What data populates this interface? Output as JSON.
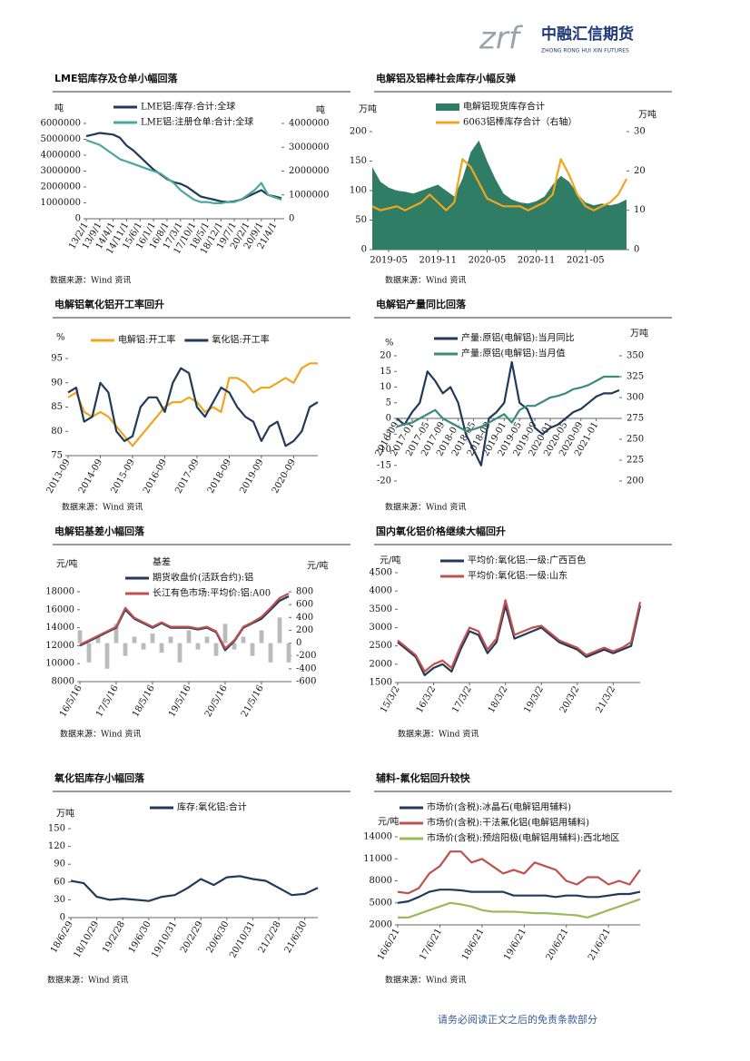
{
  "header": {
    "logo_mark": "zrf",
    "company": "中融汇信期货",
    "company_en": "ZHONG RONG HUI XIN FUTURES"
  },
  "footer": "请务必阅读正文之后的免责条款部分",
  "chart_data": [
    {
      "type": "line",
      "title": "LME铝库存及仓单小幅回落",
      "ylabel": "吨",
      "y2label": "吨",
      "source": "数据来源：Wind 资讯",
      "categories": [
        "13/2/1",
        null,
        "13/9/1",
        null,
        "14/4/1",
        null,
        "14/11/1",
        null,
        "15/6/1",
        null,
        "16/1/1",
        null,
        "16/8/1",
        null,
        "17/3/1",
        null,
        "17/10/1",
        null,
        "18/5/1",
        null,
        "18/12/1",
        null,
        "19/7/1",
        null,
        "20/2/1",
        null,
        "20/9/1",
        null,
        "21/4/1",
        null
      ],
      "ylim": [
        0,
        6000000
      ],
      "yticks": [
        0,
        1000000,
        2000000,
        3000000,
        4000000,
        5000000,
        6000000
      ],
      "y2lim": [
        0,
        4000000
      ],
      "y2ticks": [
        0,
        1000000,
        2000000,
        3000000,
        4000000
      ],
      "series": [
        {
          "name": "LME铝:库存:合计:全球",
          "color": "#1f3a5a",
          "values": [
            5200000,
            5300000,
            5400000,
            5350000,
            5300000,
            5100000,
            4600000,
            4300000,
            3900000,
            3500000,
            3100000,
            2800000,
            2500000,
            2300000,
            2200000,
            2000000,
            1700000,
            1400000,
            1300000,
            1200000,
            1100000,
            1050000,
            1100000,
            1200000,
            1400000,
            1600000,
            1800000,
            1500000,
            1400000,
            1300000
          ]
        },
        {
          "name": "LME铝:注册仓单:合计:全球",
          "color": "#4aa89a",
          "axis": "y2",
          "values": [
            3300000,
            3200000,
            3100000,
            2900000,
            2700000,
            2500000,
            2400000,
            2300000,
            2200000,
            2100000,
            2000000,
            1900000,
            1700000,
            1500000,
            1200000,
            1000000,
            800000,
            700000,
            700000,
            650000,
            650000,
            700000,
            700000,
            800000,
            1000000,
            1200000,
            1500000,
            1000000,
            900000,
            800000
          ]
        }
      ]
    },
    {
      "type": "line",
      "title": "电解铝及铝棒社会库存小幅反弹",
      "ylabel": "万吨",
      "y2label": "万吨",
      "source": "数据来源：Wind 资讯",
      "categories": [
        null,
        null,
        "2019-05",
        null,
        null,
        null,
        null,
        null,
        "2019-11",
        null,
        null,
        null,
        null,
        null,
        "2020-05",
        null,
        null,
        null,
        null,
        null,
        "2020-11",
        null,
        null,
        null,
        null,
        null,
        "2021-05",
        null,
        null,
        null,
        null,
        null
      ],
      "ylim": [
        0,
        200
      ],
      "yticks": [
        0,
        50,
        100,
        150,
        200
      ],
      "y2lim": [
        0,
        30
      ],
      "y2ticks": [
        0,
        10,
        20,
        30
      ],
      "series": [
        {
          "name": "电解铝现货库存合计",
          "color": "#2e7d64",
          "kind": "area",
          "values": [
            140,
            115,
            105,
            100,
            98,
            95,
            100,
            105,
            110,
            100,
            90,
            120,
            165,
            185,
            150,
            120,
            95,
            85,
            80,
            78,
            82,
            90,
            110,
            125,
            115,
            95,
            80,
            75,
            78,
            75,
            78,
            85
          ]
        },
        {
          "name": "6063铝棒库存合计（右轴）",
          "color": "#f0a51c",
          "axis": "y2",
          "values": [
            11,
            10,
            10.5,
            11,
            10,
            11,
            12,
            14,
            12,
            10,
            12,
            23,
            21,
            17,
            13,
            12,
            11,
            11,
            11,
            10,
            11,
            12,
            14,
            23,
            19,
            14,
            11,
            10,
            11,
            12,
            14,
            18
          ]
        }
      ]
    },
    {
      "type": "line",
      "title": "电解铝氧化铝开工率回升",
      "ylabel": "%",
      "source": "数据来源：Wind 资讯",
      "categories": [
        "2013-09",
        null,
        null,
        null,
        "2014-09",
        null,
        null,
        null,
        "2015-09",
        null,
        null,
        null,
        "2016-09",
        null,
        null,
        null,
        "2017-09",
        null,
        null,
        null,
        "2018-09",
        null,
        null,
        null,
        "2019-09",
        null,
        null,
        null,
        "2020-09",
        null,
        null,
        null
      ],
      "ylim": [
        75,
        95
      ],
      "yticks": [
        75,
        80,
        85,
        90,
        95
      ],
      "series": [
        {
          "name": "电解铝:开工率",
          "color": "#f0a51c",
          "values": [
            87,
            88,
            84,
            83,
            84,
            83,
            81,
            79,
            77,
            79,
            81,
            83,
            85,
            86,
            86,
            87,
            86,
            84,
            85,
            84,
            91,
            91,
            90,
            88,
            89,
            89,
            90,
            91,
            90,
            93,
            94,
            94
          ]
        },
        {
          "name": "氧化铝:开工率",
          "color": "#1f3a5a",
          "values": [
            88,
            89,
            82,
            83,
            90,
            88,
            80,
            78,
            79,
            85,
            87,
            87,
            84,
            90,
            93,
            92,
            85,
            83,
            86,
            89,
            88,
            85,
            83,
            82,
            78,
            81,
            82,
            77,
            78,
            80,
            85,
            86
          ]
        }
      ]
    },
    {
      "type": "line",
      "title": "电解铝产量同比回落",
      "ylabel": "%",
      "y2label": "万吨",
      "source": "数据来源：Wind 资讯",
      "categories": [
        "2016-09",
        null,
        "2017-01",
        null,
        "2017-05",
        null,
        "2017-09",
        null,
        "2018-01",
        null,
        "2018-05",
        null,
        "2018-09",
        null,
        "2019-01",
        null,
        "2019-05",
        null,
        "2019-09",
        null,
        "2020-01",
        null,
        "2020-05",
        null,
        "2020-09",
        null,
        "2021-01",
        null,
        null,
        null
      ],
      "ylim": [
        -20,
        20
      ],
      "yticks": [
        -20,
        -15,
        -10,
        -5,
        0,
        5,
        10,
        15,
        20
      ],
      "y2lim": [
        200,
        350
      ],
      "y2ticks": [
        200,
        225,
        250,
        275,
        300,
        325,
        350
      ],
      "series": [
        {
          "name": "产量:原铝(电解铝):当月同比",
          "color": "#1f3a5a",
          "values": [
            0,
            -2,
            2,
            5,
            15,
            12,
            8,
            10,
            5,
            -5,
            -10,
            -15,
            0,
            2,
            5,
            18,
            5,
            3,
            -3,
            -5,
            -3,
            -2,
            0,
            2,
            3,
            5,
            7,
            8,
            8,
            9
          ]
        },
        {
          "name": "产量:原铝(电解铝):当月值",
          "color": "#3a8c78",
          "axis": "y2",
          "values": [
            265,
            268,
            270,
            275,
            280,
            285,
            275,
            270,
            265,
            260,
            262,
            265,
            270,
            275,
            280,
            270,
            285,
            290,
            290,
            295,
            300,
            302,
            305,
            310,
            312,
            315,
            320,
            325,
            325,
            325
          ]
        }
      ]
    },
    {
      "type": "line",
      "title": "电解铝基差小幅回落",
      "ylabel": "元/吨",
      "y2label": "元/吨",
      "source": "数据来源：Wind 资讯",
      "categories": [
        "16/5/16",
        null,
        null,
        null,
        "17/5/16",
        null,
        null,
        null,
        "18/5/16",
        null,
        null,
        null,
        "19/5/16",
        null,
        null,
        null,
        "20/5/16",
        null,
        null,
        null,
        "21/5/16",
        null,
        null,
        null
      ],
      "ylim": [
        8000,
        18000
      ],
      "yticks": [
        8000,
        10000,
        12000,
        14000,
        16000,
        18000
      ],
      "y2lim": [
        -600,
        800
      ],
      "y2ticks": [
        -600,
        -400,
        -200,
        0,
        200,
        400,
        600,
        800
      ],
      "series": [
        {
          "name": "基差",
          "color": "#bbbbbb",
          "kind": "bar",
          "axis": "y2",
          "values": [
            200,
            -300,
            100,
            -400,
            300,
            -200,
            100,
            -100,
            150,
            -150,
            100,
            -300,
            200,
            -100,
            100,
            -200,
            300,
            -100,
            100,
            -200,
            200,
            -300,
            400,
            -300
          ]
        },
        {
          "name": "期货收盘价(活跃合约):铝",
          "color": "#1f3a5a",
          "values": [
            12000,
            12500,
            13000,
            13500,
            14000,
            16000,
            15000,
            14500,
            14000,
            14500,
            14000,
            14000,
            14000,
            13800,
            14000,
            13500,
            11500,
            12500,
            14000,
            14500,
            15000,
            16000,
            17000,
            17500
          ]
        },
        {
          "name": "长江有色市场:平均价:铝:A00",
          "color": "#c0504d",
          "values": [
            12100,
            12600,
            13100,
            13600,
            14100,
            16200,
            15100,
            14600,
            14100,
            14600,
            14100,
            14100,
            14100,
            13900,
            14100,
            13600,
            11700,
            12600,
            14100,
            14600,
            15200,
            16200,
            17300,
            17800
          ]
        }
      ]
    },
    {
      "type": "line",
      "title": "国内氧化铝价格继续大幅回升",
      "ylabel": "元/吨",
      "source": "数据来源：Wind 资讯",
      "categories": [
        "15/3/2",
        null,
        null,
        null,
        "16/3/2",
        null,
        null,
        null,
        "17/3/2",
        null,
        null,
        null,
        "18/3/2",
        null,
        null,
        null,
        "19/3/2",
        null,
        null,
        null,
        "20/3/2",
        null,
        null,
        null,
        "21/3/2",
        null,
        null,
        null
      ],
      "ylim": [
        1500,
        4500
      ],
      "yticks": [
        1500,
        2000,
        2500,
        3000,
        3500,
        4000,
        4500
      ],
      "series": [
        {
          "name": "平均价:氧化铝:一级:广西百色",
          "color": "#1f3a5a",
          "values": [
            2600,
            2400,
            2200,
            1700,
            1900,
            2000,
            1800,
            2400,
            2900,
            2800,
            2300,
            2600,
            3600,
            2700,
            2800,
            2900,
            3000,
            2800,
            2600,
            2500,
            2400,
            2200,
            2300,
            2400,
            2300,
            2400,
            2500,
            3600
          ]
        },
        {
          "name": "平均价:氧化铝:一级:山东",
          "color": "#c0504d",
          "values": [
            2650,
            2450,
            2250,
            1800,
            2000,
            2100,
            1900,
            2500,
            3000,
            2900,
            2400,
            2700,
            3750,
            2800,
            2900,
            3000,
            3050,
            2850,
            2650,
            2550,
            2450,
            2250,
            2350,
            2450,
            2350,
            2450,
            2600,
            3700
          ]
        }
      ]
    },
    {
      "type": "line",
      "title": "氧化铝库存小幅回落",
      "ylabel": "万吨",
      "source": "数据来源：Wind 资讯",
      "categories": [
        "18/6/29",
        null,
        "18/10/29",
        null,
        "19/2/28",
        null,
        "19/6/30",
        null,
        "19/10/31",
        null,
        "20/2/29",
        null,
        "20/6/30",
        null,
        "20/10/31",
        null,
        "21/2/28",
        null,
        "21/6/30",
        null
      ],
      "ylim": [
        0,
        150
      ],
      "yticks": [
        0,
        30,
        60,
        90,
        120,
        150
      ],
      "series": [
        {
          "name": "库存:氧化铝:合计",
          "color": "#1f3a5a",
          "values": [
            62,
            58,
            35,
            30,
            32,
            30,
            28,
            35,
            38,
            50,
            65,
            55,
            68,
            70,
            65,
            62,
            50,
            38,
            40,
            50
          ]
        }
      ]
    },
    {
      "type": "line",
      "title": "辅料-氟化铝回升较快",
      "ylabel": "元/吨",
      "source": "数据来源：Wind 资讯",
      "categories": [
        "16/6/21",
        null,
        null,
        null,
        "17/6/21",
        null,
        null,
        null,
        "18/6/21",
        null,
        null,
        null,
        "19/6/21",
        null,
        null,
        null,
        "20/6/21",
        null,
        null,
        null,
        "21/6/21",
        null,
        null,
        null
      ],
      "ylim": [
        2000,
        14000
      ],
      "yticks": [
        2000,
        5000,
        8000,
        11000,
        14000
      ],
      "series": [
        {
          "name": "市场价(含税):冰晶石(电解铝用辅料)",
          "color": "#1f3a5a",
          "values": [
            5000,
            5200,
            5800,
            6500,
            6800,
            6800,
            6700,
            6500,
            6500,
            6500,
            6500,
            6000,
            6000,
            6000,
            6000,
            5800,
            6000,
            6000,
            5800,
            5800,
            6000,
            6200,
            6200,
            6500
          ]
        },
        {
          "name": "市场价(含税):干法氟化铝(电解铝用辅料)",
          "color": "#c0504d",
          "values": [
            6500,
            6300,
            7000,
            9000,
            10000,
            12000,
            12000,
            10500,
            11000,
            10000,
            9000,
            9500,
            9000,
            10500,
            10000,
            9500,
            8000,
            7500,
            8500,
            8500,
            7500,
            8000,
            7500,
            9500
          ]
        },
        {
          "name": "市场价(含税):预焙阳极(电解铝用辅料):西北地区",
          "color": "#9bbb59",
          "values": [
            3000,
            3000,
            3500,
            4000,
            4500,
            5000,
            4800,
            4500,
            4000,
            3800,
            3800,
            3800,
            3700,
            3600,
            3600,
            3500,
            3400,
            3300,
            3000,
            3500,
            4000,
            4500,
            5000,
            5500
          ]
        }
      ]
    }
  ]
}
